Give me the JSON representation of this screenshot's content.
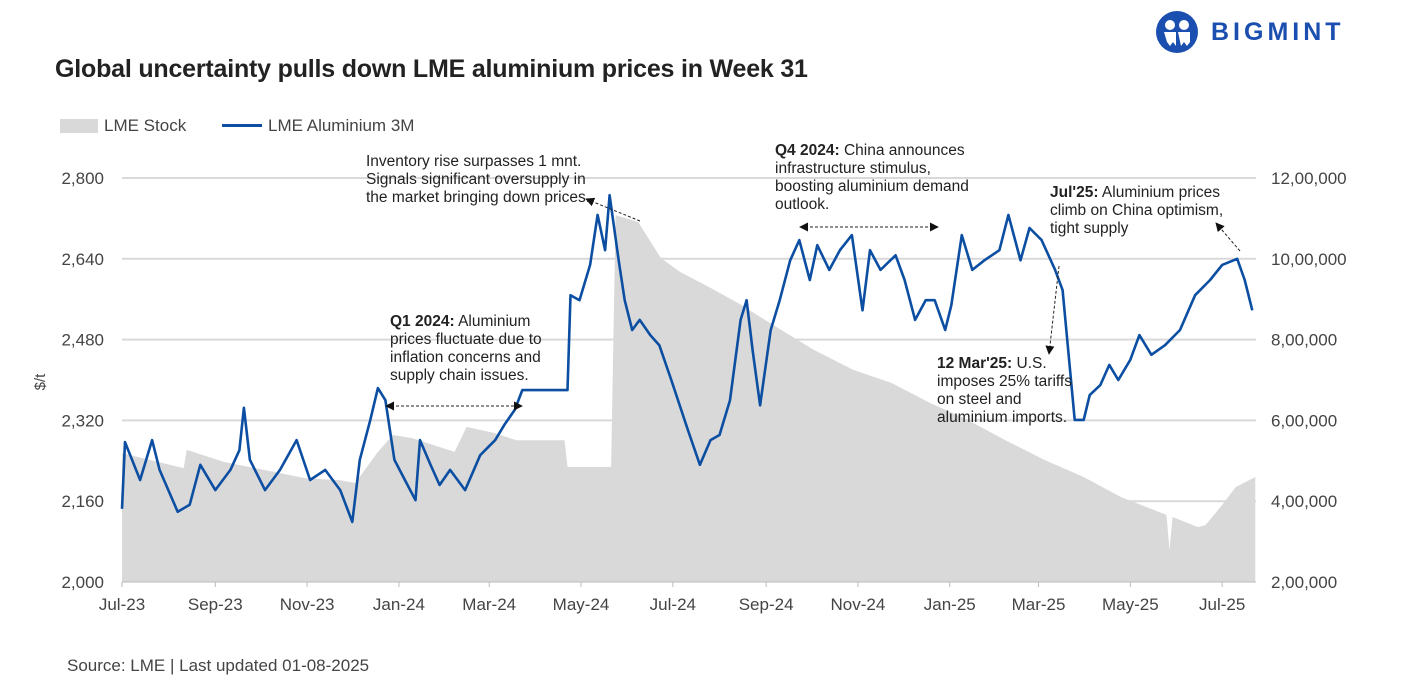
{
  "brand": {
    "logo_text": "BIGMINT",
    "color": "#1a4fb0"
  },
  "title": "Global uncertainty pulls down LME aluminium prices in Week 31",
  "source": "Source: LME | Last updated 01-08-2025",
  "legend": [
    {
      "label": "LME Stock",
      "color": "#d9d9d9",
      "kind": "area"
    },
    {
      "label": "LME Aluminium 3M",
      "color": "#0b4ea2",
      "kind": "line"
    }
  ],
  "annotations": {
    "inventory": {
      "bold": "",
      "text": "Inventory rise surpasses 1 mnt. Signals significant oversupply in the market bringing down prices."
    },
    "q1_2024": {
      "bold": "Q1 2024:",
      "text": " Aluminium prices fluctuate due to inflation concerns and supply chain issues."
    },
    "q4_2024": {
      "bold": "Q4 2024:",
      "text": " China announces infrastructure stimulus, boosting aluminium demand outlook."
    },
    "mar25": {
      "bold": "12 Mar'25:",
      "text": " U.S. imposes 25% tariffs on steel and aluminium imports."
    },
    "jul25": {
      "bold": "Jul'25:",
      "text": " Aluminium prices climb on China optimism, tight supply"
    }
  },
  "chart_data": {
    "type": "line+area",
    "title": "Global uncertainty pulls down LME aluminium prices in Week 31",
    "xlabel": "",
    "ylabel": "$/t",
    "ylim": [
      2000,
      2800
    ],
    "y2lim": [
      200000,
      1200000
    ],
    "yticks": [
      "2,000",
      "2,160",
      "2,320",
      "2,480",
      "2,640",
      "2,800"
    ],
    "yticks_values": [
      2000,
      2160,
      2320,
      2480,
      2640,
      2800
    ],
    "y2ticks": [
      "2,00,000",
      "4,00,000",
      "6,00,000",
      "8,00,000",
      "10,00,000",
      "12,00,000"
    ],
    "y2ticks_values": [
      200000,
      400000,
      600000,
      800000,
      1000000,
      1200000
    ],
    "xticks": [
      "Jul-23",
      "Sep-23",
      "Nov-23",
      "Jan-24",
      "Mar-24",
      "May-24",
      "Jul-24",
      "Sep-24",
      "Nov-24",
      "Jan-25",
      "Mar-25",
      "May-25",
      "Jul-25"
    ],
    "xticks_dates": [
      "2023-07-01",
      "2023-09-01",
      "2023-11-01",
      "2024-01-01",
      "2024-03-01",
      "2024-05-01",
      "2024-07-01",
      "2024-09-01",
      "2024-11-01",
      "2025-01-01",
      "2025-03-01",
      "2025-05-01",
      "2025-07-01"
    ],
    "grid": "horizontal",
    "legend_position": "top-left",
    "series": [
      {
        "name": "LME Aluminium 3M",
        "axis": "left",
        "color": "#0b4ea2",
        "points": [
          [
            "2023-07-01",
            2145
          ],
          [
            "2023-07-03",
            2277
          ],
          [
            "2023-07-13",
            2202
          ],
          [
            "2023-07-21",
            2281
          ],
          [
            "2023-07-26",
            2222
          ],
          [
            "2023-08-07",
            2139
          ],
          [
            "2023-08-15",
            2153
          ],
          [
            "2023-08-22",
            2232
          ],
          [
            "2023-09-01",
            2182
          ],
          [
            "2023-09-11",
            2222
          ],
          [
            "2023-09-17",
            2261
          ],
          [
            "2023-09-20",
            2345
          ],
          [
            "2023-09-24",
            2242
          ],
          [
            "2023-10-04",
            2182
          ],
          [
            "2023-10-14",
            2222
          ],
          [
            "2023-10-25",
            2281
          ],
          [
            "2023-11-03",
            2202
          ],
          [
            "2023-11-13",
            2222
          ],
          [
            "2023-11-23",
            2182
          ],
          [
            "2023-12-01",
            2119
          ],
          [
            "2023-12-06",
            2242
          ],
          [
            "2023-12-13",
            2321
          ],
          [
            "2023-12-18",
            2384
          ],
          [
            "2023-12-23",
            2360
          ],
          [
            "2023-12-29",
            2242
          ],
          [
            "2024-01-05",
            2202
          ],
          [
            "2024-01-12",
            2162
          ],
          [
            "2024-01-15",
            2281
          ],
          [
            "2024-01-22",
            2232
          ],
          [
            "2024-01-28",
            2192
          ],
          [
            "2024-02-04",
            2222
          ],
          [
            "2024-02-14",
            2182
          ],
          [
            "2024-02-24",
            2251
          ],
          [
            "2024-03-05",
            2281
          ],
          [
            "2024-03-11",
            2311
          ],
          [
            "2024-03-18",
            2341
          ],
          [
            "2024-03-23",
            2380
          ],
          [
            "2024-04-22",
            2380
          ],
          [
            "2024-04-24",
            2568
          ],
          [
            "2024-04-30",
            2558
          ],
          [
            "2024-05-07",
            2628
          ],
          [
            "2024-05-12",
            2727
          ],
          [
            "2024-05-17",
            2657
          ],
          [
            "2024-05-20",
            2766
          ],
          [
            "2024-05-26",
            2638
          ],
          [
            "2024-05-30",
            2558
          ],
          [
            "2024-06-04",
            2499
          ],
          [
            "2024-06-09",
            2519
          ],
          [
            "2024-06-16",
            2489
          ],
          [
            "2024-06-22",
            2469
          ],
          [
            "2024-06-30",
            2400
          ],
          [
            "2024-07-11",
            2301
          ],
          [
            "2024-07-19",
            2232
          ],
          [
            "2024-07-26",
            2281
          ],
          [
            "2024-08-01",
            2291
          ],
          [
            "2024-08-08",
            2360
          ],
          [
            "2024-08-15",
            2519
          ],
          [
            "2024-08-19",
            2558
          ],
          [
            "2024-08-23",
            2459
          ],
          [
            "2024-08-28",
            2350
          ],
          [
            "2024-09-04",
            2499
          ],
          [
            "2024-09-10",
            2558
          ],
          [
            "2024-09-17",
            2637
          ],
          [
            "2024-09-23",
            2677
          ],
          [
            "2024-09-30",
            2598
          ],
          [
            "2024-10-05",
            2667
          ],
          [
            "2024-10-13",
            2618
          ],
          [
            "2024-10-20",
            2657
          ],
          [
            "2024-10-28",
            2687
          ],
          [
            "2024-11-04",
            2538
          ],
          [
            "2024-11-09",
            2657
          ],
          [
            "2024-11-16",
            2618
          ],
          [
            "2024-11-26",
            2647
          ],
          [
            "2024-12-02",
            2598
          ],
          [
            "2024-12-09",
            2519
          ],
          [
            "2024-12-16",
            2558
          ],
          [
            "2024-12-22",
            2558
          ],
          [
            "2024-12-29",
            2499
          ],
          [
            "2025-01-02",
            2548
          ],
          [
            "2025-01-09",
            2687
          ],
          [
            "2025-01-16",
            2618
          ],
          [
            "2025-01-24",
            2637
          ],
          [
            "2025-02-03",
            2657
          ],
          [
            "2025-02-09",
            2727
          ],
          [
            "2025-02-17",
            2637
          ],
          [
            "2025-02-23",
            2701
          ],
          [
            "2025-03-03",
            2677
          ],
          [
            "2025-03-12",
            2618
          ],
          [
            "2025-03-17",
            2578
          ],
          [
            "2025-03-25",
            2321
          ],
          [
            "2025-03-31",
            2321
          ],
          [
            "2025-04-04",
            2370
          ],
          [
            "2025-04-11",
            2390
          ],
          [
            "2025-04-17",
            2430
          ],
          [
            "2025-04-23",
            2400
          ],
          [
            "2025-05-01",
            2440
          ],
          [
            "2025-05-07",
            2489
          ],
          [
            "2025-05-15",
            2450
          ],
          [
            "2025-05-24",
            2469
          ],
          [
            "2025-06-03",
            2499
          ],
          [
            "2025-06-13",
            2568
          ],
          [
            "2025-06-23",
            2598
          ],
          [
            "2025-07-01",
            2628
          ],
          [
            "2025-07-11",
            2640
          ],
          [
            "2025-07-16",
            2598
          ],
          [
            "2025-07-21",
            2538
          ]
        ]
      },
      {
        "name": "LME Stock",
        "axis": "right",
        "color": "#d9d9d9",
        "points": [
          [
            "2023-07-01",
            519000
          ],
          [
            "2023-08-11",
            482000
          ],
          [
            "2023-08-13",
            527000
          ],
          [
            "2023-09-07",
            497000
          ],
          [
            "2023-10-31",
            457000
          ],
          [
            "2023-11-23",
            452000
          ],
          [
            "2023-12-03",
            445000
          ],
          [
            "2023-12-18",
            522000
          ],
          [
            "2023-12-28",
            564000
          ],
          [
            "2024-01-10",
            556000
          ],
          [
            "2024-02-07",
            522000
          ],
          [
            "2024-02-15",
            584000
          ],
          [
            "2024-03-04",
            569000
          ],
          [
            "2024-03-19",
            551000
          ],
          [
            "2024-04-20",
            551000
          ],
          [
            "2024-04-22",
            485000
          ],
          [
            "2024-05-21",
            485000
          ],
          [
            "2024-05-24",
            1108000
          ],
          [
            "2024-06-08",
            1091000
          ],
          [
            "2024-06-23",
            1002000
          ],
          [
            "2024-07-06",
            967000
          ],
          [
            "2024-07-26",
            928000
          ],
          [
            "2024-08-13",
            891000
          ],
          [
            "2024-09-08",
            831000
          ],
          [
            "2024-10-03",
            774000
          ],
          [
            "2024-10-29",
            725000
          ],
          [
            "2024-11-23",
            693000
          ],
          [
            "2024-12-19",
            643000
          ],
          [
            "2025-01-13",
            601000
          ],
          [
            "2025-02-07",
            551000
          ],
          [
            "2025-03-05",
            502000
          ],
          [
            "2025-03-31",
            460000
          ],
          [
            "2025-04-25",
            410000
          ],
          [
            "2025-05-25",
            366000
          ],
          [
            "2025-05-27",
            279000
          ],
          [
            "2025-05-29",
            361000
          ],
          [
            "2025-06-15",
            336000
          ],
          [
            "2025-06-20",
            341000
          ],
          [
            "2025-06-30",
            386000
          ],
          [
            "2025-07-10",
            435000
          ],
          [
            "2025-07-23",
            460000
          ]
        ]
      }
    ]
  }
}
